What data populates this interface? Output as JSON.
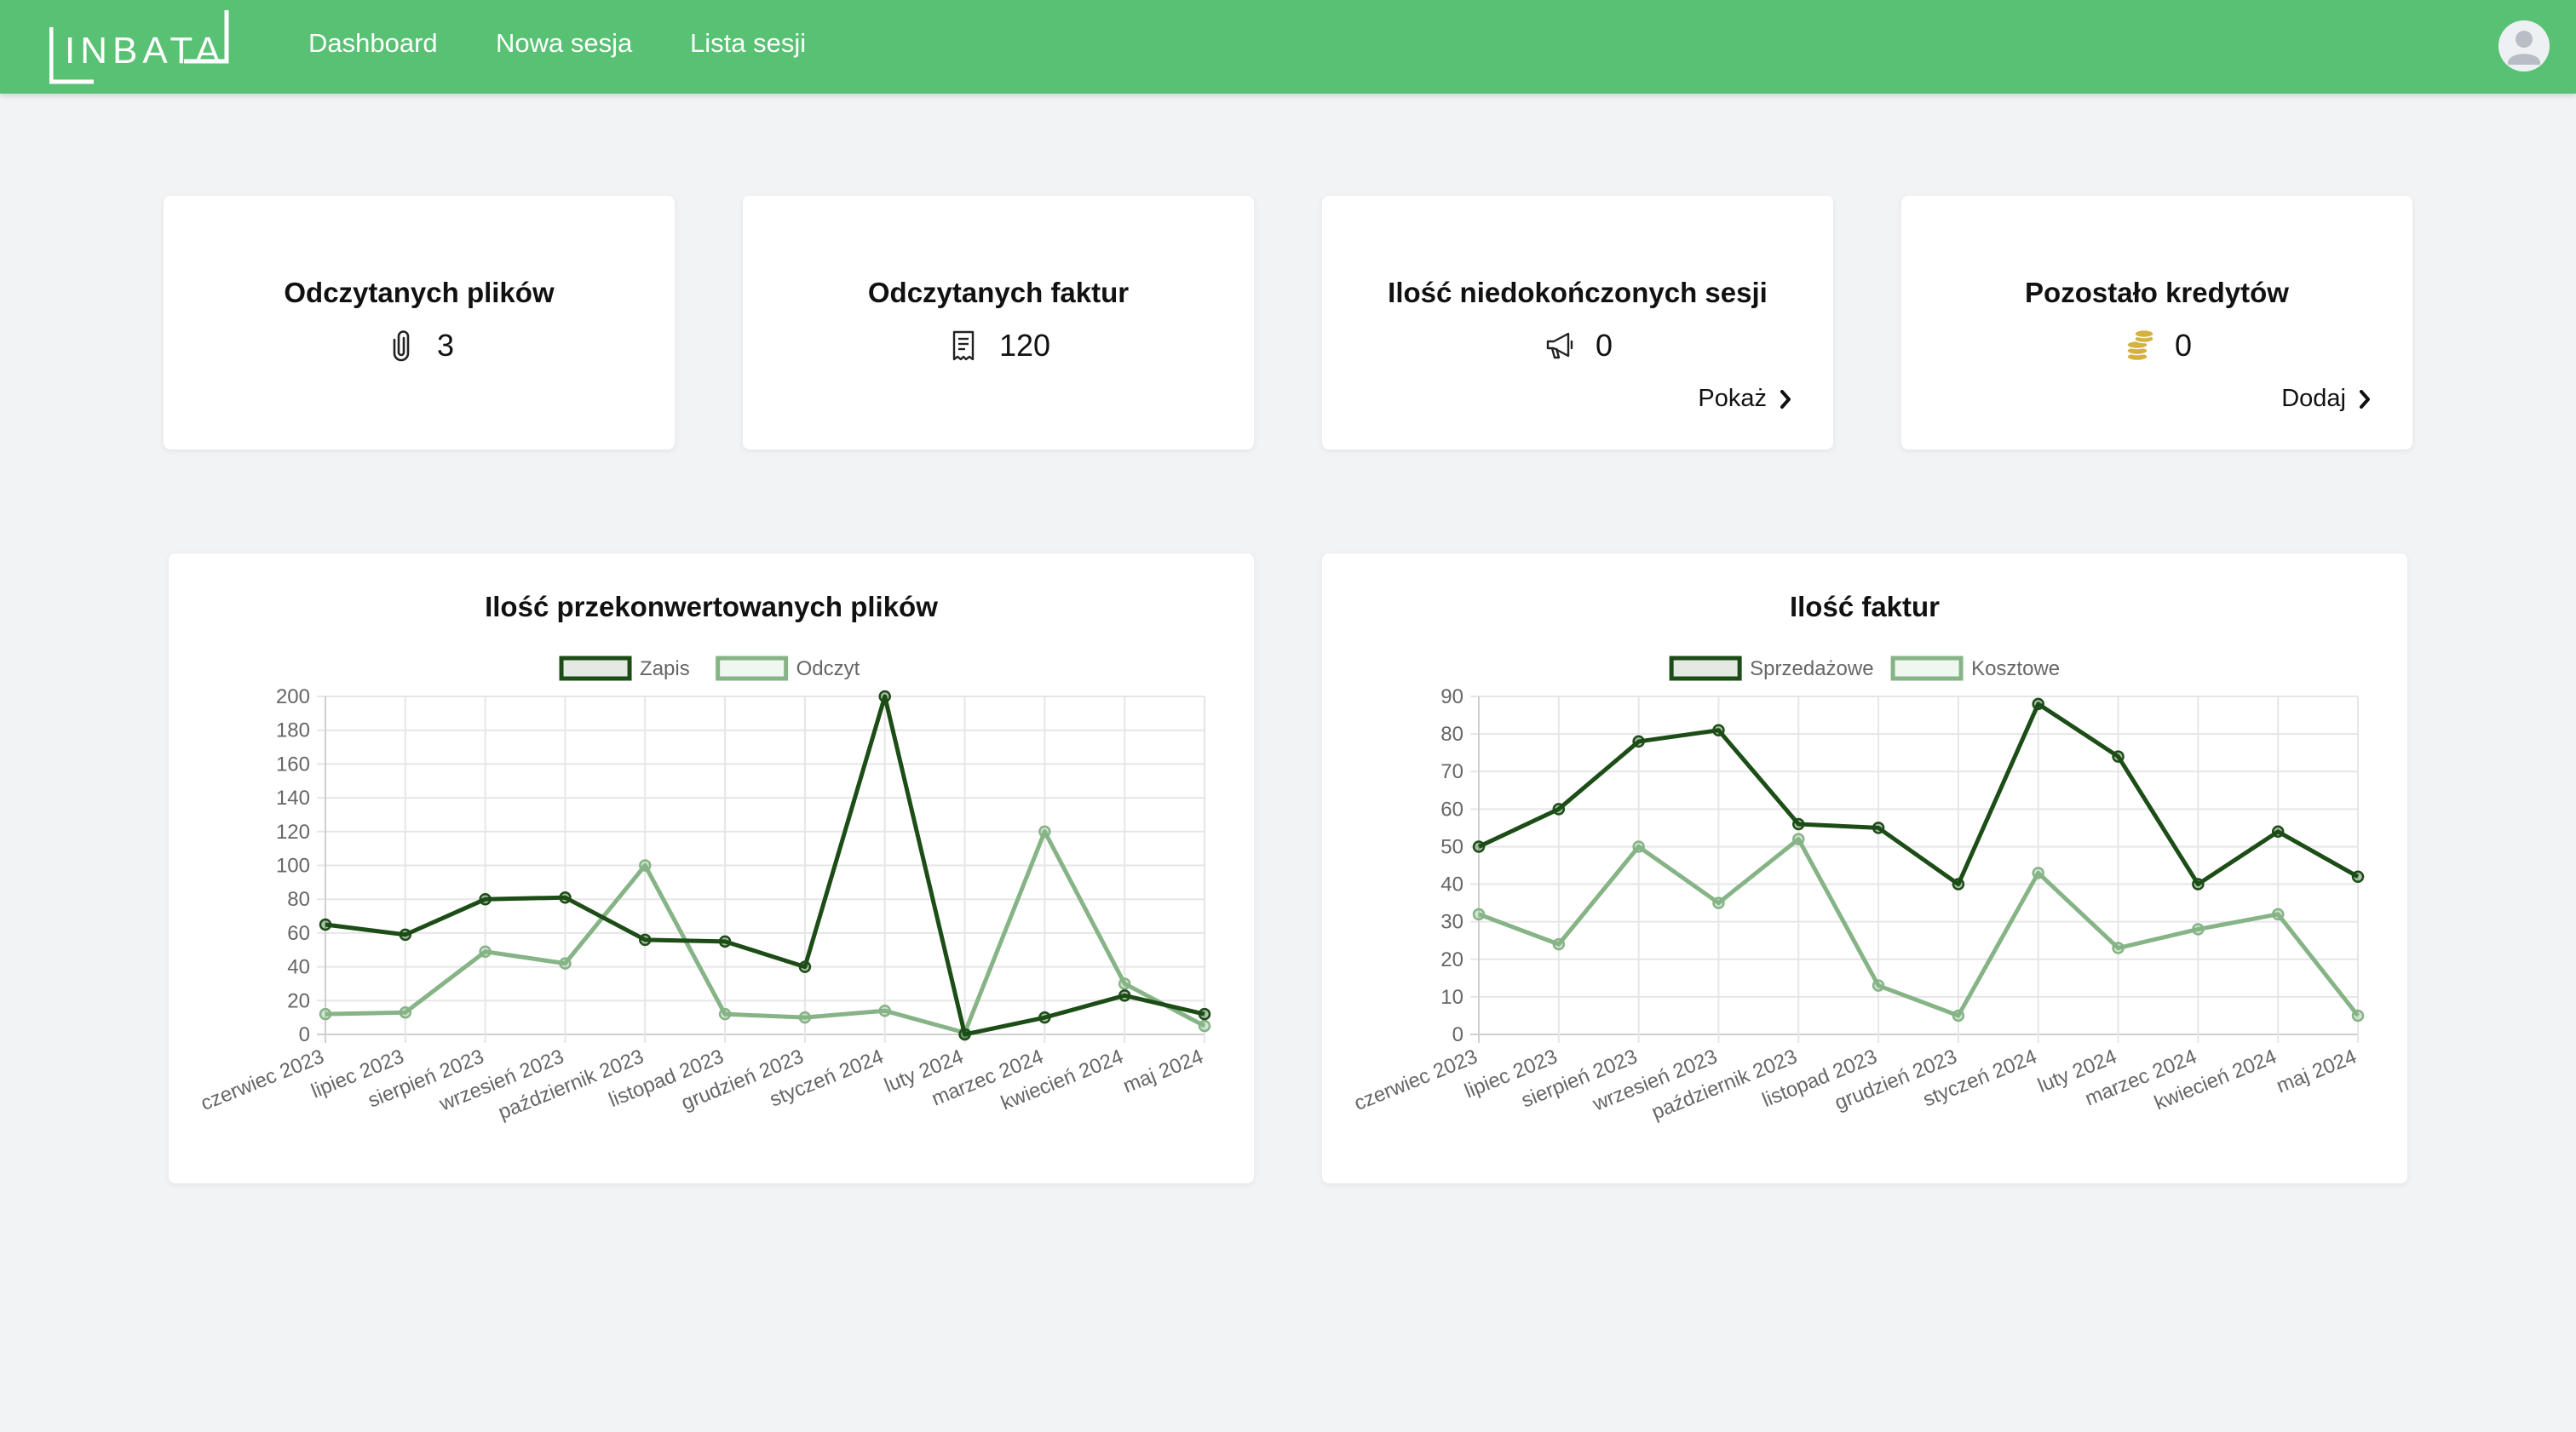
{
  "nav": {
    "logo_text": "INBATA",
    "links": [
      "Dashboard",
      "Nowa sesja",
      "Lista sesji"
    ]
  },
  "stats": [
    {
      "title": "Odczytanych plików",
      "value": "3",
      "icon": "paperclip-icon"
    },
    {
      "title": "Odczytanych faktur",
      "value": "120",
      "icon": "invoice-icon"
    },
    {
      "title": "Ilość niedokończonych sesji",
      "value": "0",
      "icon": "megaphone-icon",
      "link": "Pokaż"
    },
    {
      "title": "Pozostało kredytów",
      "value": "0",
      "icon": "coins-icon",
      "link": "Dodaj"
    }
  ],
  "colors": {
    "navbar": "#58c173",
    "dark_series": "#1d4d17",
    "light_series": "#86b486",
    "coins": "#d4b23e"
  },
  "chart_data": [
    {
      "type": "line",
      "title": "Ilość przekonwertowanych plików",
      "legend_position": "top",
      "grid": true,
      "ylim": [
        0,
        200
      ],
      "yticks": [
        0,
        20,
        40,
        60,
        80,
        100,
        120,
        140,
        160,
        180,
        200
      ],
      "categories": [
        "czerwiec 2023",
        "lipiec 2023",
        "sierpień 2023",
        "wrzesień 2023",
        "październik 2023",
        "listopad 2023",
        "grudzień 2023",
        "styczeń 2024",
        "luty 2024",
        "marzec 2024",
        "kwiecień 2024",
        "maj 2024"
      ],
      "series": [
        {
          "name": "Zapis",
          "color": "#1d4d17",
          "values": [
            65,
            59,
            80,
            81,
            56,
            55,
            40,
            200,
            0,
            10,
            23,
            12
          ]
        },
        {
          "name": "Odczyt",
          "color": "#86b486",
          "values": [
            12,
            13,
            49,
            42,
            100,
            12,
            10,
            14,
            1,
            120,
            30,
            5
          ]
        }
      ]
    },
    {
      "type": "line",
      "title": "Ilość faktur",
      "legend_position": "top",
      "grid": true,
      "ylim": [
        0,
        90
      ],
      "yticks": [
        0,
        10,
        20,
        30,
        40,
        50,
        60,
        70,
        80,
        90
      ],
      "categories": [
        "czerwiec 2023",
        "lipiec 2023",
        "sierpień 2023",
        "wrzesień 2023",
        "październik 2023",
        "listopad 2023",
        "grudzień 2023",
        "styczeń 2024",
        "luty 2024",
        "marzec 2024",
        "kwiecień 2024",
        "maj 2024"
      ],
      "series": [
        {
          "name": "Sprzedażowe",
          "color": "#1d4d17",
          "values": [
            50,
            60,
            78,
            81,
            56,
            55,
            40,
            88,
            74,
            40,
            54,
            42
          ]
        },
        {
          "name": "Kosztowe",
          "color": "#86b486",
          "values": [
            32,
            24,
            50,
            35,
            52,
            13,
            5,
            43,
            23,
            28,
            32,
            5
          ]
        }
      ]
    }
  ]
}
